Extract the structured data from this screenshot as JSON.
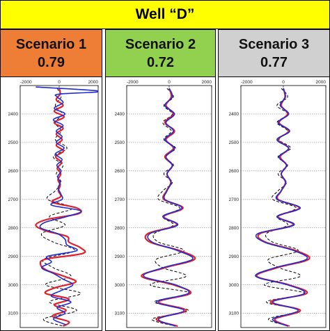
{
  "title": "Well “D”",
  "colors": {
    "title_bg": "#ffff00",
    "blue_line": "#1f2bd6",
    "red_line": "#e0202a",
    "dashed_line": "#000000"
  },
  "scenarios": [
    {
      "name": "Scenario 1",
      "value": "0.79",
      "header_color": "#ee7d35"
    },
    {
      "name": "Scenario 2",
      "value": "0.72",
      "header_color": "#92d050"
    },
    {
      "name": "Scenario 3",
      "value": "0.77",
      "header_color": "#d0d0d0"
    }
  ],
  "chart_data": [
    {
      "type": "line",
      "panel": "Scenario 1",
      "xlim": [
        -2000,
        2000
      ],
      "x_ticks": [
        "-2000",
        "0",
        "2000"
      ],
      "y_ticks": [
        2400,
        2500,
        2600,
        2700,
        2800,
        2900,
        3000,
        3100
      ],
      "ylim": [
        2300,
        3150
      ],
      "y_reversed": true,
      "grid": true,
      "series": [
        {
          "style": "blue-solid",
          "depth": [
            2305,
            2320,
            2330,
            2340,
            2360,
            2380,
            2400,
            2420,
            2440,
            2460,
            2480,
            2500,
            2520,
            2540,
            2560,
            2580,
            2600,
            2620,
            2640,
            2660,
            2680,
            2700,
            2720,
            2740,
            2760,
            2780,
            2800,
            2820,
            2840,
            2860,
            2880,
            2900,
            2920,
            2940,
            2960,
            2980,
            3000,
            3020,
            3040,
            3060,
            3080,
            3100,
            3120,
            3140
          ],
          "value": [
            -1200,
            2100,
            0,
            -100,
            200,
            -250,
            300,
            -300,
            200,
            -150,
            150,
            -150,
            250,
            -200,
            150,
            -120,
            100,
            -80,
            50,
            -50,
            80,
            150,
            -400,
            1100,
            400,
            -700,
            -950,
            -100,
            300,
            400,
            900,
            -600,
            -400,
            -900,
            -300,
            200,
            700,
            100,
            -400,
            600,
            -100,
            300,
            -300,
            350
          ]
        },
        {
          "style": "red-solid",
          "depth": [
            2310,
            2330,
            2350,
            2370,
            2390,
            2410,
            2430,
            2450,
            2470,
            2490,
            2510,
            2530,
            2550,
            2570,
            2590,
            2610,
            2630,
            2650,
            2670,
            2690,
            2710,
            2730,
            2750,
            2770,
            2790,
            2810,
            2830,
            2850,
            2870,
            2890,
            2910,
            2930,
            2950,
            2970,
            2990,
            3010,
            3030,
            3050,
            3070,
            3090,
            3110,
            3130,
            3145
          ],
          "value": [
            0,
            50,
            -150,
            200,
            -250,
            250,
            -250,
            200,
            -150,
            150,
            -150,
            220,
            -180,
            130,
            -100,
            80,
            -60,
            50,
            -40,
            80,
            -350,
            900,
            1000,
            -600,
            -1200,
            -700,
            400,
            500,
            1100,
            1200,
            -700,
            -950,
            -600,
            250,
            850,
            -200,
            -700,
            500,
            -250,
            350,
            -350,
            500,
            200
          ]
        },
        {
          "style": "black-dashed",
          "depth": [
            2310,
            2340,
            2370,
            2400,
            2430,
            2460,
            2490,
            2520,
            2550,
            2580,
            2610,
            2640,
            2670,
            2700,
            2730,
            2760,
            2790,
            2820,
            2850,
            2880,
            2910,
            2940,
            2970,
            3000,
            3030,
            3060,
            3090,
            3120,
            3145
          ],
          "value": [
            -100,
            100,
            -200,
            150,
            -200,
            100,
            -200,
            400,
            -300,
            200,
            -150,
            100,
            -200,
            -600,
            700,
            -500,
            300,
            -900,
            -300,
            800,
            -800,
            -300,
            600,
            -700,
            1100,
            -500,
            900,
            -800,
            200
          ]
        }
      ]
    },
    {
      "type": "line",
      "panel": "Scenario 2",
      "xlim": [
        -2000,
        2000
      ],
      "x_ticks": [
        "-2000",
        "0",
        "2000"
      ],
      "y_ticks": [
        2400,
        2500,
        2600,
        2700,
        2800,
        2900,
        3000,
        3100
      ],
      "ylim": [
        2300,
        3150
      ],
      "y_reversed": true,
      "grid": true,
      "series": [
        {
          "style": "blue-solid",
          "depth": [
            2310,
            2340,
            2370,
            2400,
            2430,
            2460,
            2490,
            2520,
            2550,
            2580,
            2610,
            2640,
            2670,
            2700,
            2730,
            2760,
            2790,
            2820,
            2850,
            2880,
            2910,
            2940,
            2970,
            3000,
            3030,
            3060,
            3090,
            3120,
            3145
          ],
          "value": [
            0,
            150,
            -200,
            250,
            -150,
            200,
            -200,
            250,
            -150,
            150,
            -100,
            100,
            -100,
            -200,
            600,
            -300,
            400,
            -900,
            -800,
            400,
            1100,
            -300,
            -1200,
            300,
            900,
            -600,
            700,
            -500,
            300
          ]
        },
        {
          "style": "red-solid",
          "depth": [
            2310,
            2340,
            2370,
            2400,
            2430,
            2460,
            2490,
            2520,
            2550,
            2580,
            2610,
            2640,
            2670,
            2700,
            2730,
            2760,
            2790,
            2820,
            2850,
            2880,
            2910,
            2940,
            2970,
            3000,
            3030,
            3060,
            3090,
            3120,
            3145
          ],
          "value": [
            0,
            100,
            -150,
            200,
            -200,
            250,
            -150,
            200,
            -200,
            150,
            -100,
            80,
            -120,
            -250,
            650,
            -250,
            350,
            -1000,
            -900,
            500,
            1200,
            -200,
            -1300,
            200,
            1000,
            -500,
            800,
            -600,
            400
          ]
        },
        {
          "style": "black-dashed",
          "depth": [
            2310,
            2340,
            2370,
            2400,
            2430,
            2460,
            2490,
            2520,
            2550,
            2580,
            2610,
            2640,
            2670,
            2700,
            2730,
            2760,
            2790,
            2820,
            2850,
            2880,
            2910,
            2940,
            2970,
            3000,
            3030,
            3060,
            3090,
            3120,
            3145
          ],
          "value": [
            -100,
            200,
            -250,
            150,
            -300,
            100,
            -250,
            300,
            -200,
            200,
            -250,
            150,
            -300,
            -500,
            500,
            -300,
            200,
            -700,
            -500,
            700,
            -600,
            -300,
            800,
            -900,
            1000,
            -700,
            900,
            -800,
            300
          ]
        }
      ]
    },
    {
      "type": "line",
      "panel": "Scenario 3",
      "xlim": [
        -2000,
        2000
      ],
      "x_ticks": [
        "-2000",
        "0",
        "2000"
      ],
      "y_ticks": [
        2400,
        2500,
        2600,
        2700,
        2800,
        2900,
        3000,
        3100
      ],
      "ylim": [
        2300,
        3150
      ],
      "y_reversed": true,
      "grid": true,
      "series": [
        {
          "style": "blue-solid",
          "depth": [
            2310,
            2340,
            2370,
            2400,
            2430,
            2460,
            2490,
            2520,
            2550,
            2580,
            2610,
            2640,
            2670,
            2700,
            2730,
            2760,
            2790,
            2820,
            2850,
            2880,
            2910,
            2940,
            2970,
            3000,
            3030,
            3060,
            3090,
            3120,
            3145
          ],
          "value": [
            0,
            100,
            -150,
            250,
            -250,
            300,
            -300,
            250,
            -200,
            150,
            -100,
            120,
            -100,
            -300,
            800,
            -300,
            500,
            -1200,
            -900,
            500,
            1100,
            -400,
            -1300,
            200,
            1000,
            -500,
            700,
            -500,
            200
          ]
        },
        {
          "style": "red-solid",
          "depth": [
            2310,
            2340,
            2370,
            2400,
            2430,
            2460,
            2490,
            2520,
            2550,
            2580,
            2610,
            2640,
            2670,
            2700,
            2730,
            2760,
            2790,
            2820,
            2850,
            2880,
            2910,
            2940,
            2970,
            3000,
            3030,
            3060,
            3090,
            3120,
            3145
          ],
          "value": [
            0,
            80,
            -100,
            200,
            -200,
            250,
            -250,
            250,
            -150,
            150,
            -100,
            100,
            -100,
            -250,
            750,
            -250,
            450,
            -1100,
            -850,
            600,
            1200,
            -300,
            -1250,
            250,
            1100,
            -600,
            800,
            -400,
            250
          ]
        },
        {
          "style": "black-dashed",
          "depth": [
            2310,
            2340,
            2370,
            2400,
            2430,
            2460,
            2490,
            2520,
            2550,
            2580,
            2610,
            2640,
            2670,
            2700,
            2730,
            2760,
            2790,
            2820,
            2850,
            2880,
            2910,
            2940,
            2970,
            3000,
            3030,
            3060,
            3090,
            3120,
            3145
          ],
          "value": [
            -100,
            200,
            -300,
            200,
            -300,
            200,
            -200,
            350,
            -250,
            200,
            -250,
            150,
            -250,
            -500,
            600,
            -300,
            200,
            -800,
            -500,
            700,
            -700,
            -200,
            800,
            -900,
            1000,
            -800,
            800,
            -700,
            300
          ]
        }
      ]
    }
  ]
}
